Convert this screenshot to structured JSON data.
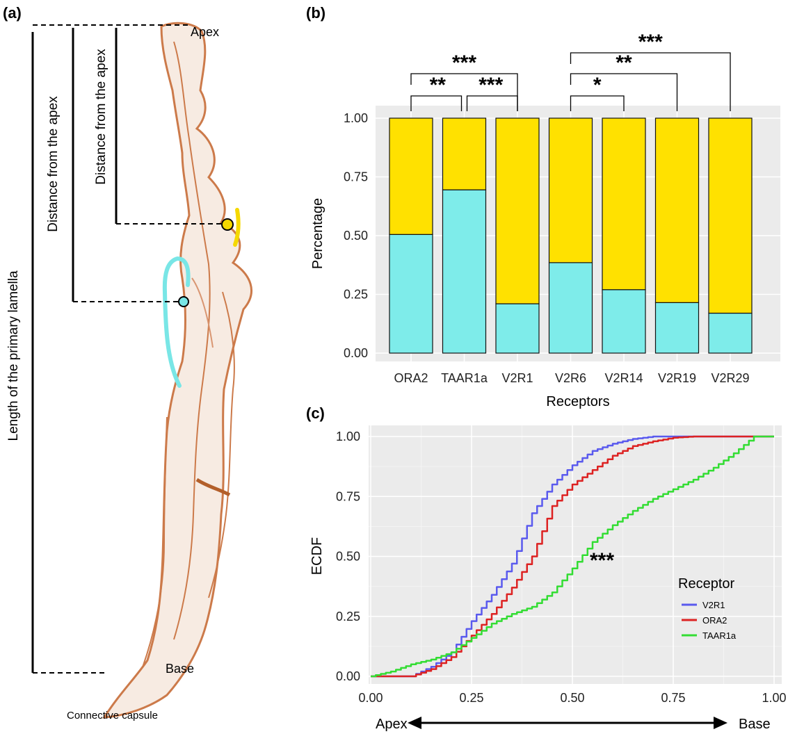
{
  "panel_a": {
    "label": "(a)",
    "apex_label": "Apex",
    "base_label": "Base",
    "capsule_label": "Connective capsule",
    "dist_label_1": "Distance from the apex",
    "dist_label_2": "Distance from the apex",
    "length_label": "Length of the primary lamella",
    "colors": {
      "tissue": "#cc7a4a",
      "marker_yellow": "#f5d800",
      "marker_cyan": "#79e6e6"
    }
  },
  "chart_data": [
    {
      "type": "bar",
      "panel_label": "(b)",
      "stacked": true,
      "categories": [
        "ORA2",
        "TAAR1a",
        "V2R1",
        "V2R6",
        "V2R14",
        "V2R19",
        "V2R29"
      ],
      "series": [
        {
          "color": "#7eecea",
          "values": [
            0.505,
            0.695,
            0.21,
            0.385,
            0.27,
            0.215,
            0.17
          ]
        },
        {
          "color": "#ffe100",
          "values": [
            0.495,
            0.305,
            0.79,
            0.615,
            0.73,
            0.785,
            0.83
          ]
        }
      ],
      "xlabel": "Receptors",
      "ylabel": "Percentage",
      "ylim": [
        0,
        1
      ],
      "yticks": [
        "0.00",
        "0.25",
        "0.50",
        "0.75",
        "1.00"
      ],
      "grid": true,
      "brackets": [
        {
          "from": "ORA2",
          "to": "TAAR1a",
          "label": "**",
          "level": 1
        },
        {
          "from": "TAAR1a",
          "to": "V2R1",
          "label": "***",
          "level": 1
        },
        {
          "from": "ORA2",
          "to": "V2R1",
          "label": "***",
          "level": 2
        },
        {
          "from": "V2R6",
          "to": "V2R14",
          "label": "*",
          "level": 1
        },
        {
          "from": "V2R6",
          "to": "V2R19",
          "label": "**",
          "level": 2
        },
        {
          "from": "V2R6",
          "to": "V2R29",
          "label": "***",
          "level": 3
        }
      ]
    },
    {
      "type": "line",
      "panel_label": "(c)",
      "ylabel": "ECDF",
      "xlim": [
        0,
        1
      ],
      "ylim": [
        0,
        1
      ],
      "xticks": [
        "0.00",
        "0.25",
        "0.50",
        "0.75",
        "1.00"
      ],
      "yticks": [
        "0.00",
        "0.25",
        "0.50",
        "0.75",
        "1.00"
      ],
      "x_arrow_left": "Apex",
      "x_arrow_right": "Base",
      "grid": true,
      "legend_title": "Receptor",
      "legend_position": "right",
      "annotation": "***",
      "series": [
        {
          "name": "V2R1",
          "color": "#5a5aee",
          "x": [
            0.0,
            0.1,
            0.15,
            0.2,
            0.25,
            0.3,
            0.35,
            0.4,
            0.45,
            0.5,
            0.55,
            0.6,
            0.65,
            0.7,
            1.0
          ],
          "y": [
            0.0,
            0.0,
            0.04,
            0.1,
            0.23,
            0.34,
            0.47,
            0.68,
            0.8,
            0.88,
            0.94,
            0.97,
            0.99,
            1.0,
            1.0
          ]
        },
        {
          "name": "ORA2",
          "color": "#dd2222",
          "x": [
            0.0,
            0.1,
            0.15,
            0.2,
            0.25,
            0.3,
            0.35,
            0.4,
            0.45,
            0.5,
            0.55,
            0.6,
            0.65,
            0.7,
            0.75,
            0.8,
            1.0
          ],
          "y": [
            0.0,
            0.0,
            0.03,
            0.08,
            0.17,
            0.26,
            0.37,
            0.5,
            0.71,
            0.8,
            0.86,
            0.92,
            0.96,
            0.98,
            0.995,
            1.0,
            1.0
          ]
        },
        {
          "name": "TAAR1a",
          "color": "#33dd33",
          "x": [
            0.0,
            0.05,
            0.1,
            0.15,
            0.2,
            0.25,
            0.3,
            0.35,
            0.4,
            0.45,
            0.5,
            0.55,
            0.6,
            0.65,
            0.7,
            0.75,
            0.8,
            0.85,
            0.9,
            0.95,
            1.0
          ],
          "y": [
            0.0,
            0.02,
            0.05,
            0.07,
            0.1,
            0.16,
            0.22,
            0.26,
            0.29,
            0.35,
            0.45,
            0.56,
            0.63,
            0.69,
            0.74,
            0.78,
            0.82,
            0.87,
            0.93,
            1.0,
            1.0
          ]
        }
      ]
    }
  ]
}
